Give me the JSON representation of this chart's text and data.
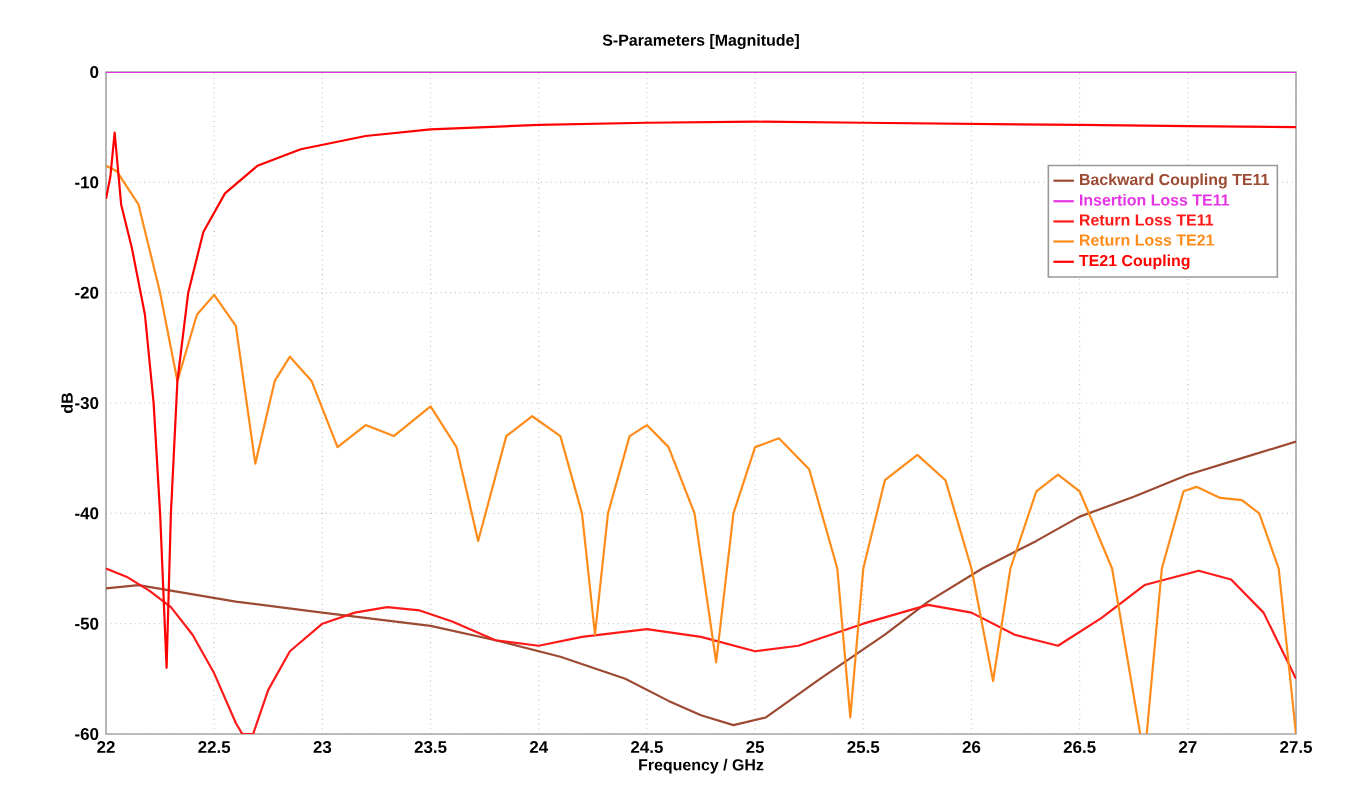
{
  "chart_data": {
    "type": "line",
    "title": "S-Parameters [Magnitude]",
    "xlabel": "Frequency / GHz",
    "ylabel": "dB",
    "xlim": [
      22,
      27.5
    ],
    "xticks": [
      22,
      22.5,
      23,
      23.5,
      24,
      24.5,
      25,
      25.5,
      26,
      26.5,
      27,
      27.5
    ],
    "ylim": [
      -60,
      0
    ],
    "yticks": [
      -60,
      -50,
      -40,
      -30,
      -20,
      -10,
      0
    ],
    "grid": true,
    "legend": "top right",
    "marker": "none",
    "line_style": "solid",
    "series": [
      {
        "name": "Backward Coupling TE11",
        "color": "#9c4a32",
        "x": [
          22,
          22.15,
          22.3,
          22.6,
          23,
          23.5,
          23.8,
          24.1,
          24.4,
          24.6,
          24.75,
          24.9,
          25.05,
          25.3,
          25.6,
          25.8,
          26.05,
          26.3,
          26.5,
          26.75,
          27,
          27.25,
          27.5
        ],
        "values": [
          -46.8,
          -46.5,
          -47,
          -48,
          -49,
          -50.2,
          -51.5,
          -53,
          -55,
          -57,
          -58.3,
          -59.2,
          -58.5,
          -55,
          -51,
          -48,
          -45,
          -42.5,
          -40.3,
          -38.5,
          -36.5,
          -35,
          -33.5
        ]
      },
      {
        "name": "Insertion Loss TE11",
        "color": "#e633e6",
        "x": [
          22,
          23,
          24,
          25,
          26,
          27,
          27.5
        ],
        "values": [
          0,
          0,
          0,
          0,
          0,
          0,
          0
        ]
      },
      {
        "name": "Return Loss TE11",
        "color": "#ff1a1a",
        "x": [
          22,
          22.1,
          22.2,
          22.3,
          22.4,
          22.5,
          22.6,
          22.63,
          22.68,
          22.75,
          22.85,
          23,
          23.15,
          23.3,
          23.45,
          23.6,
          23.8,
          24,
          24.2,
          24.5,
          24.75,
          25,
          25.2,
          25.5,
          25.8,
          26,
          26.2,
          26.4,
          26.6,
          26.8,
          27.05,
          27.2,
          27.35,
          27.5
        ],
        "values": [
          -45,
          -45.8,
          -47,
          -48.5,
          -51,
          -54.5,
          -59,
          -60,
          -60,
          -56,
          -52.5,
          -50,
          -49,
          -48.5,
          -48.8,
          -49.8,
          -51.5,
          -52,
          -51.2,
          -50.5,
          -51.2,
          -52.5,
          -52,
          -50,
          -48.3,
          -49,
          -51,
          -52,
          -49.5,
          -46.5,
          -45.2,
          -46,
          -49,
          -55
        ]
      },
      {
        "name": "Return Loss TE21",
        "color": "#ff8c1a",
        "x": [
          22,
          22.05,
          22.15,
          22.25,
          22.33,
          22.42,
          22.5,
          22.6,
          22.69,
          22.78,
          22.85,
          22.95,
          23.07,
          23.2,
          23.33,
          23.5,
          23.62,
          23.72,
          23.85,
          23.97,
          24.1,
          24.2,
          24.26,
          24.32,
          24.42,
          24.5,
          24.6,
          24.72,
          24.82,
          24.9,
          25,
          25.11,
          25.25,
          25.38,
          25.44,
          25.5,
          25.6,
          25.75,
          25.88,
          26,
          26.1,
          26.18,
          26.3,
          26.4,
          26.5,
          26.65,
          26.78,
          26.795,
          26.81,
          26.88,
          26.98,
          27.04,
          27.15,
          27.25,
          27.33,
          27.42,
          27.5
        ],
        "values": [
          -8.5,
          -9,
          -12,
          -20,
          -28,
          -22,
          -20.2,
          -23,
          -35.5,
          -28,
          -25.8,
          -28,
          -34,
          -32,
          -33,
          -30.3,
          -34,
          -42.5,
          -33,
          -31.2,
          -33,
          -40,
          -51,
          -40,
          -33,
          -32,
          -34,
          -40,
          -53.5,
          -40,
          -34,
          -33.2,
          -36,
          -45,
          -58.5,
          -45,
          -37,
          -34.7,
          -37,
          -45,
          -55.2,
          -45,
          -38,
          -36.5,
          -38,
          -45,
          -60,
          null,
          -60,
          -45,
          -38,
          -37.6,
          -38.6,
          -38.8,
          -40,
          -45,
          -60
        ]
      },
      {
        "name": "TE21 Coupling",
        "color": "#ff0000",
        "x": [
          22,
          22.02,
          22.04,
          22.07,
          22.12,
          22.18,
          22.22,
          22.25,
          22.28,
          22.3,
          22.33,
          22.38,
          22.45,
          22.55,
          22.7,
          22.9,
          23.2,
          23.5,
          24,
          24.5,
          25,
          25.5,
          26,
          26.5,
          27,
          27.5
        ],
        "values": [
          -11.5,
          -9.5,
          -5.5,
          -12,
          -16,
          -22,
          -30,
          -40,
          -54,
          -40,
          -28,
          -20,
          -14.5,
          -11,
          -8.5,
          -7,
          -5.8,
          -5.2,
          -4.8,
          -4.6,
          -4.5,
          -4.6,
          -4.7,
          -4.8,
          -4.9,
          -5
        ]
      }
    ]
  }
}
